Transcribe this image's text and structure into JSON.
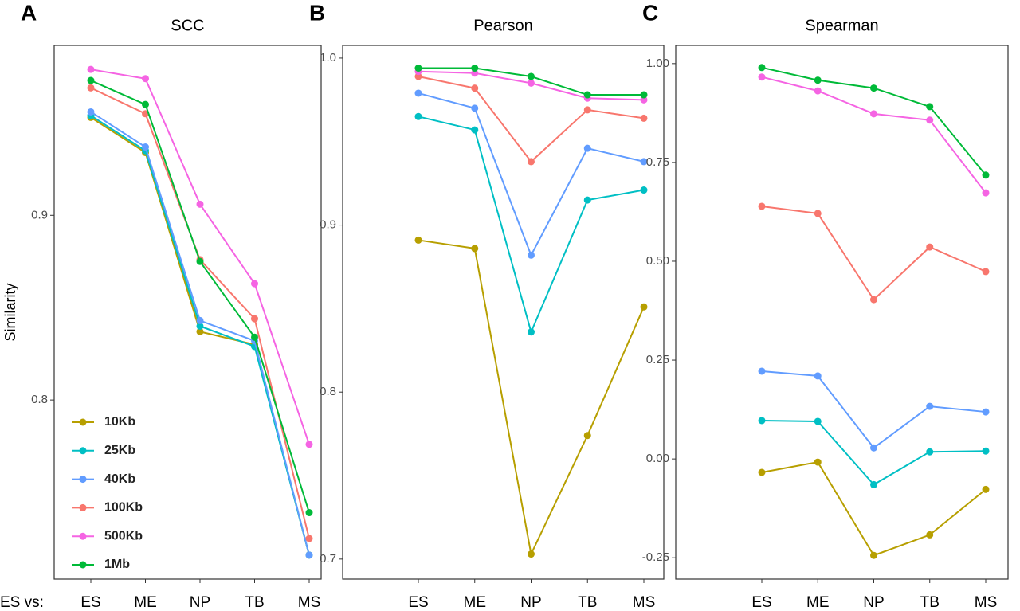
{
  "chart_data": [
    {
      "type": "line",
      "panel_label": "A",
      "title": "SCC",
      "ylabel": "Similarity",
      "x_prefix": "ES vs:",
      "categories": [
        "ES",
        "ME",
        "NP",
        "TB",
        "MS"
      ],
      "ylim": [
        0.703,
        0.992
      ],
      "yticks": [
        0.8,
        0.9
      ],
      "legend": "lower left",
      "series": [
        {
          "name": "10Kb",
          "color": "#b79f00",
          "values": [
            0.953,
            0.934,
            0.837,
            0.83,
            0.716
          ]
        },
        {
          "name": "25Kb",
          "color": "#00bfc4",
          "values": [
            0.954,
            0.935,
            0.84,
            0.829,
            0.716
          ]
        },
        {
          "name": "40Kb",
          "color": "#619cff",
          "values": [
            0.956,
            0.937,
            0.843,
            0.832,
            0.716
          ]
        },
        {
          "name": "100Kb",
          "color": "#f8766d",
          "values": [
            0.969,
            0.955,
            0.876,
            0.844,
            0.725
          ]
        },
        {
          "name": "500Kb",
          "color": "#f564e3",
          "values": [
            0.979,
            0.974,
            0.906,
            0.863,
            0.776
          ]
        },
        {
          "name": "1Mb",
          "color": "#00ba38",
          "values": [
            0.973,
            0.96,
            0.875,
            0.834,
            0.739
          ]
        }
      ]
    },
    {
      "type": "line",
      "panel_label": "B",
      "title": "Pearson",
      "categories": [
        "ES",
        "ME",
        "NP",
        "TB",
        "MS"
      ],
      "ylim": [
        0.688,
        1.0076
      ],
      "yticks": [
        0.7,
        0.8,
        0.9,
        {
          "value": 1.0,
          "label": "1.0"
        }
      ],
      "series": [
        {
          "name": "10Kb",
          "color": "#b79f00",
          "values": [
            0.891,
            0.886,
            0.703,
            0.774,
            0.851
          ]
        },
        {
          "name": "25Kb",
          "color": "#00bfc4",
          "values": [
            0.965,
            0.957,
            0.836,
            0.915,
            0.921
          ]
        },
        {
          "name": "40Kb",
          "color": "#619cff",
          "values": [
            0.979,
            0.97,
            0.882,
            0.946,
            0.938
          ]
        },
        {
          "name": "100Kb",
          "color": "#f8766d",
          "values": [
            0.989,
            0.982,
            0.938,
            0.969,
            0.964
          ]
        },
        {
          "name": "500Kb",
          "color": "#f564e3",
          "values": [
            0.992,
            0.991,
            0.985,
            0.976,
            0.975
          ]
        },
        {
          "name": "1Mb",
          "color": "#00ba38",
          "values": [
            0.994,
            0.994,
            0.989,
            0.978,
            0.978
          ]
        }
      ]
    },
    {
      "type": "line",
      "panel_label": "C",
      "title": "Spearman",
      "categories": [
        "ES",
        "ME",
        "NP",
        "TB",
        "MS"
      ],
      "ylim": [
        -0.304,
        1.046
      ],
      "yticks": [
        -0.25,
        {
          "value": 0,
          "label": "0.00"
        },
        0.25,
        {
          "value": 0.5,
          "label": "0.50"
        },
        0.75,
        {
          "value": 1,
          "label": "1.00"
        }
      ],
      "series": [
        {
          "name": "10Kb",
          "color": "#b79f00",
          "values": [
            -0.034,
            -0.008,
            -0.244,
            -0.192,
            -0.077
          ]
        },
        {
          "name": "25Kb",
          "color": "#00bfc4",
          "values": [
            0.097,
            0.095,
            -0.065,
            0.018,
            0.02
          ]
        },
        {
          "name": "40Kb",
          "color": "#619cff",
          "values": [
            0.222,
            0.21,
            0.028,
            0.133,
            0.119
          ]
        },
        {
          "name": "100Kb",
          "color": "#f8766d",
          "values": [
            0.639,
            0.621,
            0.403,
            0.536,
            0.474
          ]
        },
        {
          "name": "500Kb",
          "color": "#f564e3",
          "values": [
            0.966,
            0.931,
            0.873,
            0.857,
            0.673
          ]
        },
        {
          "name": "1Mb",
          "color": "#00ba38",
          "values": [
            0.99,
            0.958,
            0.938,
            0.891,
            0.718
          ]
        }
      ]
    }
  ]
}
